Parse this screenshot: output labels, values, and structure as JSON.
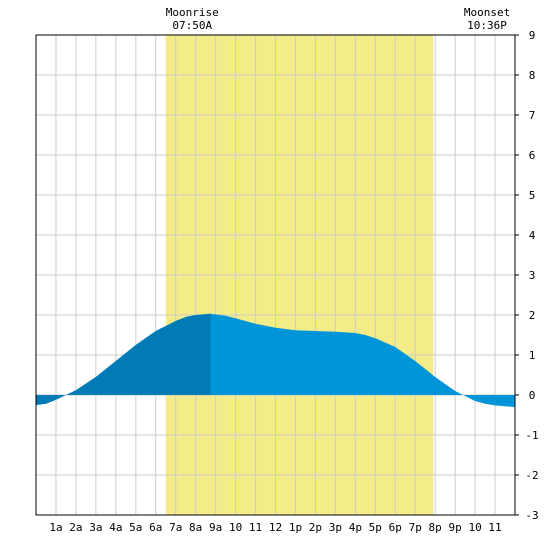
{
  "chart_data": {
    "type": "area",
    "title": "",
    "xlabel": "",
    "ylabel": "",
    "x_tick_labels": [
      "1a",
      "2a",
      "3a",
      "4a",
      "5a",
      "6a",
      "7a",
      "8a",
      "9a",
      "10",
      "11",
      "12",
      "1p",
      "2p",
      "3p",
      "4p",
      "5p",
      "6p",
      "7p",
      "8p",
      "9p",
      "10",
      "11"
    ],
    "y_ticks": [
      9,
      8,
      7,
      6,
      5,
      4,
      3,
      2,
      1,
      0,
      -1,
      -2,
      -3
    ],
    "xlim": [
      0,
      24
    ],
    "ylim": [
      -3,
      9
    ],
    "grid": true,
    "daylight_window": {
      "start_hour": 6.5,
      "end_hour": 19.9
    },
    "highlight_split_hour": 8.75,
    "series": [
      {
        "x": [
          0,
          0.5,
          1,
          1.5,
          2,
          3,
          4,
          5,
          6,
          7,
          7.5,
          8,
          8.75,
          9.5,
          10,
          11,
          12,
          13,
          14,
          15,
          16,
          16.5,
          17,
          18,
          19,
          19.5,
          20,
          21,
          22,
          22.5,
          23,
          23.5,
          24
        ],
        "y": [
          -0.25,
          -0.22,
          -0.12,
          0.0,
          0.12,
          0.45,
          0.85,
          1.25,
          1.6,
          1.85,
          1.95,
          2.0,
          2.03,
          1.98,
          1.92,
          1.78,
          1.68,
          1.62,
          1.6,
          1.58,
          1.55,
          1.5,
          1.42,
          1.2,
          0.85,
          0.65,
          0.45,
          0.1,
          -0.15,
          -0.22,
          -0.26,
          -0.28,
          -0.3
        ]
      }
    ],
    "annotations": [
      {
        "label": "Moonrise",
        "time": "07:50A",
        "hour": 7.83
      },
      {
        "label": "Moonset",
        "time": "10:36P",
        "hour": 22.6
      }
    ],
    "colors": {
      "daylight": "#f3ec88",
      "area": "#0095d9",
      "area_dark": "#007bb6",
      "grid": "#cccccc",
      "frame": "#000000"
    }
  }
}
